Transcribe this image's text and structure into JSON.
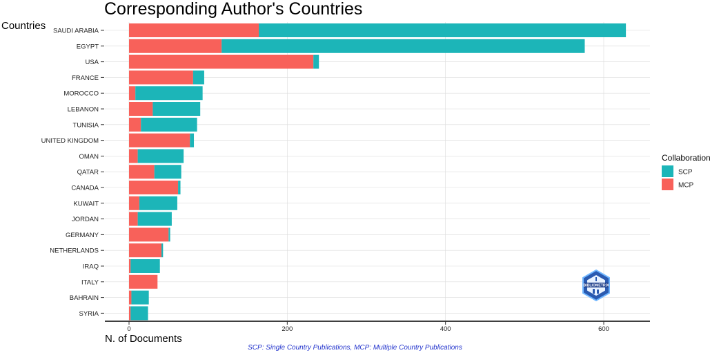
{
  "chart_data": {
    "type": "bar",
    "orientation": "horizontal",
    "stacked": true,
    "title": "Corresponding Author's Countries",
    "ylabel": "Countries",
    "xlabel": "N. of Documents",
    "caption": "SCP: Single Country Publications, MCP: Multiple Country Publications",
    "categories": [
      "SAUDI ARABIA",
      "EGYPT",
      "USA",
      "FRANCE",
      "MOROCCO",
      "LEBANON",
      "TUNISIA",
      "UNITED KINGDOM",
      "OMAN",
      "QATAR",
      "CANADA",
      "KUWAIT",
      "JORDAN",
      "GERMANY",
      "NETHERLANDS",
      "IRAQ",
      "ITALY",
      "BAHRAIN",
      "SYRIA"
    ],
    "series": [
      {
        "name": "MCP",
        "color": "#F8615A",
        "values": [
          164,
          117,
          233,
          81,
          8,
          30,
          15,
          77,
          11,
          32,
          62,
          13,
          11,
          50,
          41,
          2,
          36,
          3,
          2
        ]
      },
      {
        "name": "SCP",
        "color": "#1CB5B8",
        "values": [
          464,
          459,
          7,
          14,
          85,
          60,
          71,
          5,
          58,
          34,
          3,
          48,
          43,
          2,
          2,
          37,
          0,
          22,
          22
        ]
      }
    ],
    "xticks": [
      0,
      200,
      400,
      600
    ],
    "xlim": [
      -30,
      656
    ],
    "grid": true,
    "legend": {
      "title": "Collaboration",
      "position": "right",
      "entries": [
        "SCP",
        "MCP"
      ]
    }
  },
  "logo": {
    "name": "bibliometrix-logo",
    "text": "BIBLIOMETRIX"
  }
}
